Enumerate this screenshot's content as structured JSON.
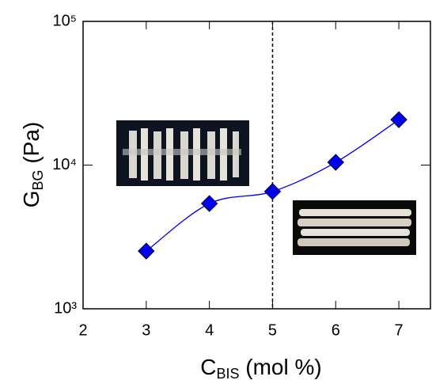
{
  "chart_data": {
    "type": "line",
    "x_label": {
      "main": "C",
      "sub": "BIS",
      "rest": " (mol %)"
    },
    "y_label": {
      "main": "G",
      "sub": "BG",
      "rest": " (Pa)"
    },
    "x": [
      3,
      4,
      5,
      6,
      7
    ],
    "series": [
      {
        "color": "#0000ee",
        "values": [
          2520,
          5400,
          6550,
          10450,
          20700
        ]
      }
    ],
    "xlim": [
      2,
      7.5
    ],
    "xticks": [
      2,
      3,
      4,
      5,
      6,
      7
    ],
    "ylim": [
      1000,
      100000
    ],
    "yticks": [
      {
        "value": 1000,
        "label": "10³"
      },
      {
        "value": 10000,
        "label": "10⁴"
      },
      {
        "value": 100000,
        "label": "10⁵"
      }
    ],
    "log_y": true,
    "vline": 5
  }
}
